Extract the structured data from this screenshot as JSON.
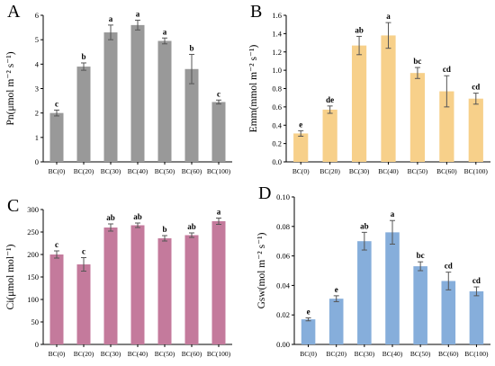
{
  "chart_data": [
    {
      "panel": "A",
      "type": "bar",
      "ylabel": "Pn(μmol m⁻² s⁻¹)",
      "ylim": [
        0,
        6
      ],
      "yticks": [
        "0",
        "1",
        "2",
        "3",
        "4",
        "5",
        "6"
      ],
      "categories": [
        "BC(0)",
        "BC(20)",
        "BC(30)",
        "BC(40)",
        "BC(50)",
        "BC(60)",
        "BC(100)"
      ],
      "values": [
        2.0,
        3.9,
        5.3,
        5.6,
        4.95,
        3.8,
        2.45
      ],
      "errors": [
        0.12,
        0.15,
        0.3,
        0.2,
        0.12,
        0.6,
        0.08
      ],
      "letters": [
        "c",
        "b",
        "a",
        "a",
        "a",
        "b",
        "c"
      ],
      "color": "#999999"
    },
    {
      "panel": "B",
      "type": "bar",
      "ylabel": "Emm(mmol m⁻² s⁻¹)",
      "ylim": [
        0,
        1.6
      ],
      "yticks": [
        "0.0",
        "0.2",
        "0.4",
        "0.6",
        "0.8",
        "1.0",
        "1.2",
        "1.4",
        "1.6"
      ],
      "categories": [
        "BC(0)",
        "BC(20)",
        "BC(30)",
        "BC(40)",
        "BC(50)",
        "BC(60)",
        "BC(100)"
      ],
      "values": [
        0.31,
        0.57,
        1.27,
        1.38,
        0.97,
        0.77,
        0.69
      ],
      "errors": [
        0.03,
        0.04,
        0.1,
        0.14,
        0.06,
        0.17,
        0.06
      ],
      "letters": [
        "e",
        "de",
        "ab",
        "a",
        "bc",
        "cd",
        "cd"
      ],
      "color": "#F7D08A"
    },
    {
      "panel": "C",
      "type": "bar",
      "ylabel": "Ci(μmol mol⁻¹)",
      "ylim": [
        0,
        300
      ],
      "yticks": [
        "0",
        "50",
        "100",
        "150",
        "200",
        "250",
        "300"
      ],
      "categories": [
        "BC(0)",
        "BC(20)",
        "BC(30)",
        "BC(40)",
        "BC(50)",
        "BC(60)",
        "BC(100)"
      ],
      "values": [
        200,
        178,
        260,
        265,
        236,
        243,
        274
      ],
      "errors": [
        8,
        15,
        8,
        5,
        6,
        5,
        7
      ],
      "letters": [
        "c",
        "c",
        "ab",
        "ab",
        "b",
        "ab",
        "a"
      ],
      "color": "#C47A9C"
    },
    {
      "panel": "D",
      "type": "bar",
      "ylabel": "Gsw(mol m⁻² s⁻¹)",
      "ylim": [
        0,
        0.1
      ],
      "yticks": [
        "0.00",
        "0.02",
        "0.04",
        "0.06",
        "0.08",
        "0.10"
      ],
      "categories": [
        "BC(0)",
        "BC(20)",
        "BC(30)",
        "BC(40)",
        "BC(50)",
        "BC(60)",
        "BC(100)"
      ],
      "values": [
        0.017,
        0.031,
        0.07,
        0.076,
        0.053,
        0.043,
        0.036
      ],
      "errors": [
        0.001,
        0.002,
        0.006,
        0.008,
        0.003,
        0.006,
        0.003
      ],
      "letters": [
        "e",
        "e",
        "ab",
        "a",
        "bc",
        "cd",
        "cd"
      ],
      "color": "#86AEDB"
    }
  ]
}
